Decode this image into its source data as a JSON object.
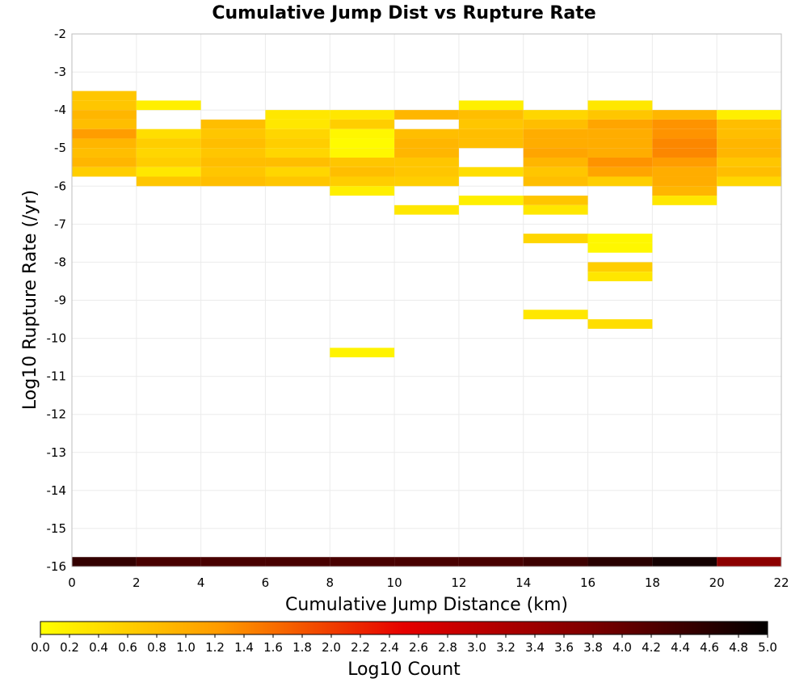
{
  "chart_data": {
    "type": "heatmap",
    "title": "Cumulative Jump Dist vs Rupture Rate",
    "xlabel": "Cumulative Jump Distance (km)",
    "ylabel": "Log10 Rupture Rate (/yr)",
    "xlim": [
      0,
      22
    ],
    "ylim": [
      -16,
      -2
    ],
    "x_ticks": [
      "0",
      "2",
      "4",
      "6",
      "8",
      "10",
      "12",
      "14",
      "16",
      "18",
      "20",
      "22"
    ],
    "y_ticks": [
      "-2",
      "-3",
      "-4",
      "-5",
      "-6",
      "-7",
      "-8",
      "-9",
      "-10",
      "-11",
      "-12",
      "-13",
      "-14",
      "-15",
      "-16"
    ],
    "x_bin_width": 2,
    "y_bin_height": 0.25,
    "grid": true,
    "colorbar": {
      "label": "Log10 Count",
      "min": 0,
      "max": 5,
      "ticks": [
        "0.0",
        "0.2",
        "0.4",
        "0.6",
        "0.8",
        "1.0",
        "1.2",
        "1.4",
        "1.6",
        "1.8",
        "2.0",
        "2.2",
        "2.4",
        "2.6",
        "2.8",
        "3.0",
        "3.2",
        "3.4",
        "3.6",
        "3.8",
        "4.0",
        "4.2",
        "4.4",
        "4.6",
        "4.8",
        "5.0"
      ],
      "colors": [
        "#ffff00",
        "#ff9900",
        "#e60000",
        "#800000",
        "#000000"
      ],
      "placement": "bottom"
    },
    "cells": [
      {
        "x": 0,
        "y": -3.75,
        "v": 0.7
      },
      {
        "x": 0,
        "y": -4.0,
        "v": 0.7
      },
      {
        "x": 0,
        "y": -4.25,
        "v": 0.9
      },
      {
        "x": 0,
        "y": -4.5,
        "v": 0.8
      },
      {
        "x": 0,
        "y": -4.75,
        "v": 1.2
      },
      {
        "x": 0,
        "y": -5.0,
        "v": 0.9
      },
      {
        "x": 0,
        "y": -5.25,
        "v": 0.8
      },
      {
        "x": 0,
        "y": -5.5,
        "v": 0.9
      },
      {
        "x": 0,
        "y": -5.75,
        "v": 0.6
      },
      {
        "x": 0,
        "y": -16.0,
        "v": 4.5
      },
      {
        "x": 2,
        "y": -4.0,
        "v": 0.2
      },
      {
        "x": 2,
        "y": -4.75,
        "v": 0.4
      },
      {
        "x": 2,
        "y": -5.0,
        "v": 0.6
      },
      {
        "x": 2,
        "y": -5.25,
        "v": 0.5
      },
      {
        "x": 2,
        "y": -5.5,
        "v": 0.6
      },
      {
        "x": 2,
        "y": -5.75,
        "v": 0.3
      },
      {
        "x": 2,
        "y": -6.0,
        "v": 0.7
      },
      {
        "x": 2,
        "y": -16.0,
        "v": 4.3
      },
      {
        "x": 4,
        "y": -4.5,
        "v": 0.8
      },
      {
        "x": 4,
        "y": -4.75,
        "v": 0.7
      },
      {
        "x": 4,
        "y": -5.0,
        "v": 0.8
      },
      {
        "x": 4,
        "y": -5.25,
        "v": 0.7
      },
      {
        "x": 4,
        "y": -5.5,
        "v": 0.8
      },
      {
        "x": 4,
        "y": -5.75,
        "v": 0.7
      },
      {
        "x": 4,
        "y": -6.0,
        "v": 0.8
      },
      {
        "x": 4,
        "y": -16.0,
        "v": 4.3
      },
      {
        "x": 6,
        "y": -4.25,
        "v": 0.3
      },
      {
        "x": 6,
        "y": -4.5,
        "v": 0.3
      },
      {
        "x": 6,
        "y": -4.75,
        "v": 0.5
      },
      {
        "x": 6,
        "y": -5.0,
        "v": 0.6
      },
      {
        "x": 6,
        "y": -5.25,
        "v": 0.5
      },
      {
        "x": 6,
        "y": -5.5,
        "v": 0.8
      },
      {
        "x": 6,
        "y": -5.75,
        "v": 0.5
      },
      {
        "x": 6,
        "y": -6.0,
        "v": 0.7
      },
      {
        "x": 6,
        "y": -16.0,
        "v": 4.3
      },
      {
        "x": 8,
        "y": -4.25,
        "v": 0.3
      },
      {
        "x": 8,
        "y": -4.5,
        "v": 0.6
      },
      {
        "x": 8,
        "y": -4.75,
        "v": 0.1
      },
      {
        "x": 8,
        "y": -5.0,
        "v": 0.05
      },
      {
        "x": 8,
        "y": -5.25,
        "v": 0.1
      },
      {
        "x": 8,
        "y": -5.5,
        "v": 0.7
      },
      {
        "x": 8,
        "y": -5.75,
        "v": 0.8
      },
      {
        "x": 8,
        "y": -6.0,
        "v": 0.6
      },
      {
        "x": 8,
        "y": -6.25,
        "v": 0.2
      },
      {
        "x": 8,
        "y": -10.5,
        "v": 0.15
      },
      {
        "x": 8,
        "y": -16.0,
        "v": 4.3
      },
      {
        "x": 10,
        "y": -4.25,
        "v": 0.9
      },
      {
        "x": 10,
        "y": -4.75,
        "v": 0.8
      },
      {
        "x": 10,
        "y": -5.0,
        "v": 0.9
      },
      {
        "x": 10,
        "y": -5.25,
        "v": 0.9
      },
      {
        "x": 10,
        "y": -5.5,
        "v": 0.7
      },
      {
        "x": 10,
        "y": -5.75,
        "v": 0.7
      },
      {
        "x": 10,
        "y": -6.0,
        "v": 0.6
      },
      {
        "x": 10,
        "y": -6.75,
        "v": 0.3
      },
      {
        "x": 10,
        "y": -16.0,
        "v": 4.3
      },
      {
        "x": 12,
        "y": -4.0,
        "v": 0.2
      },
      {
        "x": 12,
        "y": -4.25,
        "v": 0.8
      },
      {
        "x": 12,
        "y": -4.5,
        "v": 0.7
      },
      {
        "x": 12,
        "y": -4.75,
        "v": 0.8
      },
      {
        "x": 12,
        "y": -5.0,
        "v": 0.8
      },
      {
        "x": 12,
        "y": -5.75,
        "v": 0.4
      },
      {
        "x": 12,
        "y": -6.5,
        "v": 0.2
      },
      {
        "x": 12,
        "y": -16.0,
        "v": 4.3
      },
      {
        "x": 14,
        "y": -4.25,
        "v": 0.5
      },
      {
        "x": 14,
        "y": -4.5,
        "v": 0.8
      },
      {
        "x": 14,
        "y": -4.75,
        "v": 1.0
      },
      {
        "x": 14,
        "y": -5.0,
        "v": 1.0
      },
      {
        "x": 14,
        "y": -5.25,
        "v": 1.1
      },
      {
        "x": 14,
        "y": -5.5,
        "v": 0.9
      },
      {
        "x": 14,
        "y": -5.75,
        "v": 0.7
      },
      {
        "x": 14,
        "y": -6.0,
        "v": 0.8
      },
      {
        "x": 14,
        "y": -6.5,
        "v": 0.7
      },
      {
        "x": 14,
        "y": -6.75,
        "v": 0.3
      },
      {
        "x": 14,
        "y": -7.5,
        "v": 0.5
      },
      {
        "x": 14,
        "y": -9.5,
        "v": 0.3
      },
      {
        "x": 14,
        "y": -16.0,
        "v": 4.4
      },
      {
        "x": 16,
        "y": -4.0,
        "v": 0.3
      },
      {
        "x": 16,
        "y": -4.25,
        "v": 0.7
      },
      {
        "x": 16,
        "y": -4.5,
        "v": 1.1
      },
      {
        "x": 16,
        "y": -4.75,
        "v": 1.0
      },
      {
        "x": 16,
        "y": -5.0,
        "v": 1.0
      },
      {
        "x": 16,
        "y": -5.25,
        "v": 1.0
      },
      {
        "x": 16,
        "y": -5.5,
        "v": 1.3
      },
      {
        "x": 16,
        "y": -5.75,
        "v": 1.1
      },
      {
        "x": 16,
        "y": -6.0,
        "v": 0.6
      },
      {
        "x": 16,
        "y": -7.5,
        "v": 0.1
      },
      {
        "x": 16,
        "y": -7.75,
        "v": 0.1
      },
      {
        "x": 16,
        "y": -8.25,
        "v": 0.6
      },
      {
        "x": 16,
        "y": -8.5,
        "v": 0.3
      },
      {
        "x": 16,
        "y": -9.75,
        "v": 0.4
      },
      {
        "x": 16,
        "y": -16.0,
        "v": 4.6
      },
      {
        "x": 18,
        "y": -4.25,
        "v": 0.9
      },
      {
        "x": 18,
        "y": -4.5,
        "v": 1.3
      },
      {
        "x": 18,
        "y": -4.75,
        "v": 1.3
      },
      {
        "x": 18,
        "y": -5.0,
        "v": 1.4
      },
      {
        "x": 18,
        "y": -5.25,
        "v": 1.4
      },
      {
        "x": 18,
        "y": -5.5,
        "v": 1.2
      },
      {
        "x": 18,
        "y": -5.75,
        "v": 1.0
      },
      {
        "x": 18,
        "y": -6.0,
        "v": 1.0
      },
      {
        "x": 18,
        "y": -6.25,
        "v": 0.9
      },
      {
        "x": 18,
        "y": -6.5,
        "v": 0.3
      },
      {
        "x": 18,
        "y": -16.0,
        "v": 4.8
      },
      {
        "x": 20,
        "y": -4.25,
        "v": 0.2
      },
      {
        "x": 20,
        "y": -4.5,
        "v": 0.8
      },
      {
        "x": 20,
        "y": -4.75,
        "v": 0.8
      },
      {
        "x": 20,
        "y": -5.0,
        "v": 0.9
      },
      {
        "x": 20,
        "y": -5.25,
        "v": 0.9
      },
      {
        "x": 20,
        "y": -5.5,
        "v": 0.7
      },
      {
        "x": 20,
        "y": -5.75,
        "v": 0.8
      },
      {
        "x": 20,
        "y": -6.0,
        "v": 0.5
      },
      {
        "x": 20,
        "y": -16.0,
        "v": 3.6
      }
    ]
  }
}
